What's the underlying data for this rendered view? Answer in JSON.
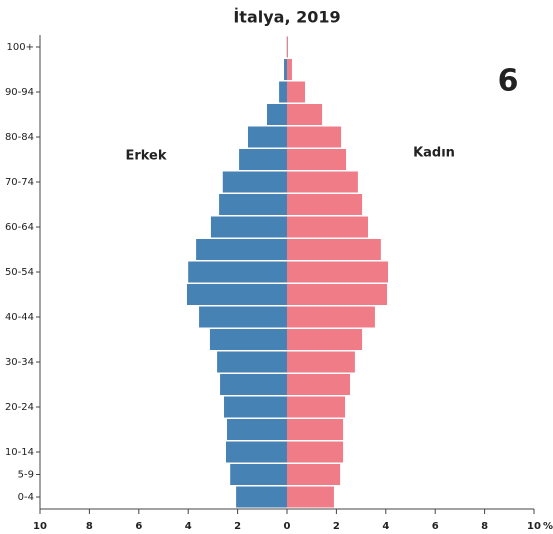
{
  "chart_data": {
    "type": "pyramid",
    "title": "İtalya, 2019",
    "annotation": "6",
    "categories": [
      "0-4",
      "5-9",
      "10-14",
      null,
      "20-24",
      null,
      "30-34",
      null,
      "40-44",
      null,
      "50-54",
      null,
      "60-64",
      null,
      "70-74",
      null,
      "80-84",
      null,
      "90-94",
      null,
      "100+"
    ],
    "series": [
      {
        "name": "Erkek",
        "color": "#4682b4",
        "values": [
          -2.06,
          -2.3,
          -2.47,
          -2.43,
          -2.55,
          -2.71,
          -2.83,
          -3.12,
          -3.56,
          -4.05,
          -4.0,
          -3.68,
          -3.08,
          -2.75,
          -2.6,
          -1.94,
          -1.58,
          -0.81,
          -0.32,
          -0.12,
          -0.01
        ]
      },
      {
        "name": "Kadın",
        "color": "#f07c87",
        "values": [
          1.9,
          2.15,
          2.27,
          2.27,
          2.35,
          2.55,
          2.75,
          3.04,
          3.56,
          4.05,
          4.09,
          3.8,
          3.28,
          3.04,
          2.87,
          2.39,
          2.19,
          1.42,
          0.73,
          0.2,
          0.04
        ]
      }
    ],
    "xlim": [
      -10,
      10
    ],
    "xticks": [
      {
        "value": -10,
        "label": "10"
      },
      {
        "value": -8,
        "label": "8"
      },
      {
        "value": -6,
        "label": "6"
      },
      {
        "value": -4,
        "label": "4"
      },
      {
        "value": -2,
        "label": "2"
      },
      0,
      2,
      4,
      6,
      8,
      10
    ],
    "xunit": "%"
  }
}
